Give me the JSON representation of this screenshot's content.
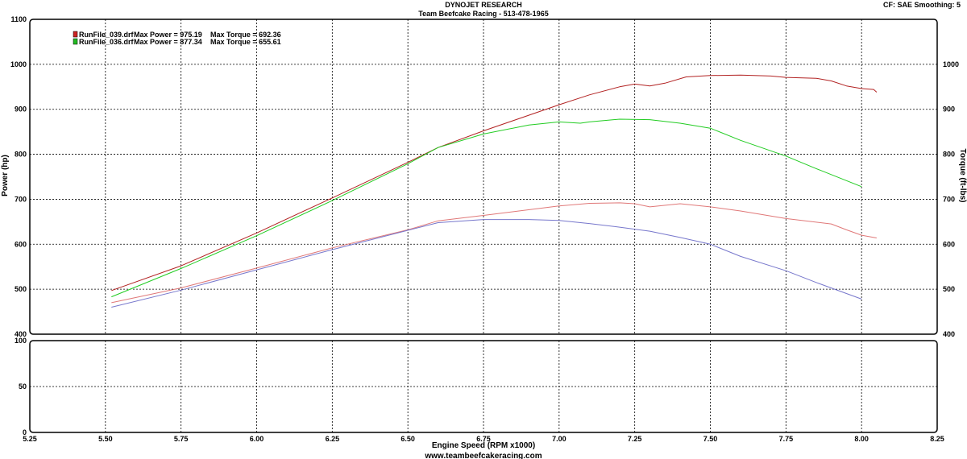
{
  "header": {
    "title": "DYNOJET RESEARCH",
    "subtitle": "Team Beefcake Racing - 513-478-1965",
    "settings": "CF: SAE  Smoothing: 5"
  },
  "footer": {
    "website": "www.teambeefcakeracing.com"
  },
  "chart_data": [
    {
      "type": "line",
      "panel": "main",
      "xlabel": "Engine Speed (RPM x1000)",
      "ylabel": "Power (hp)",
      "y2label": "Torque (ft-lbs)",
      "xlim": [
        5.25,
        8.25
      ],
      "ylim": [
        400,
        1100
      ],
      "y2lim": [
        400,
        1100
      ],
      "xticks": [
        "5.25",
        "5.50",
        "5.75",
        "6.00",
        "6.25",
        "6.50",
        "6.75",
        "7.00",
        "7.25",
        "7.50",
        "7.75",
        "8.00",
        "8.25"
      ],
      "yticks": [
        "400",
        "500",
        "600",
        "700",
        "800",
        "900",
        "1000",
        "1100"
      ],
      "y2ticks": [
        "400",
        "500",
        "600",
        "700",
        "800",
        "900",
        "1000"
      ],
      "grid": true,
      "legend_position": "top-left",
      "legend": [
        {
          "color_box": "#cc2222",
          "file": "RunFile_039.drf",
          "max_power_label": "Max Power = 975.19",
          "max_torque_label": "Max Torque = 692.36"
        },
        {
          "color_box": "#22bb22",
          "file": "RunFile_036.drf",
          "max_power_label": "Max Power = 877.34",
          "max_torque_label": "Max Torque = 655.61"
        }
      ],
      "series": [
        {
          "run": "RunFile_039.drf",
          "measure": "power",
          "axis": "left",
          "color": "#b22222",
          "points": [
            [
              5.52,
              497
            ],
            [
              5.75,
              552
            ],
            [
              6.0,
              625
            ],
            [
              6.25,
              703
            ],
            [
              6.5,
              782
            ],
            [
              6.6,
              815
            ],
            [
              6.75,
              852
            ],
            [
              7.0,
              910
            ],
            [
              7.1,
              932
            ],
            [
              7.2,
              950
            ],
            [
              7.25,
              956
            ],
            [
              7.3,
              952
            ],
            [
              7.35,
              958
            ],
            [
              7.42,
              972
            ],
            [
              7.5,
              975
            ],
            [
              7.6,
              976
            ],
            [
              7.7,
              974
            ],
            [
              7.75,
              971
            ],
            [
              7.85,
              969
            ],
            [
              7.9,
              963
            ],
            [
              7.95,
              952
            ],
            [
              8.0,
              946
            ],
            [
              8.04,
              944
            ],
            [
              8.05,
              938
            ]
          ]
        },
        {
          "run": "RunFile_036.drf",
          "measure": "power",
          "axis": "left",
          "color": "#22cc22",
          "points": [
            [
              5.52,
              483
            ],
            [
              5.75,
              546
            ],
            [
              6.0,
              619
            ],
            [
              6.25,
              697
            ],
            [
              6.5,
              779
            ],
            [
              6.6,
              815
            ],
            [
              6.75,
              845
            ],
            [
              6.9,
              865
            ],
            [
              7.0,
              872
            ],
            [
              7.07,
              869
            ],
            [
              7.1,
              872
            ],
            [
              7.2,
              878
            ],
            [
              7.3,
              877
            ],
            [
              7.4,
              869
            ],
            [
              7.5,
              858
            ],
            [
              7.6,
              831
            ],
            [
              7.75,
              796
            ],
            [
              7.85,
              768
            ],
            [
              8.0,
              728
            ]
          ]
        },
        {
          "run": "RunFile_039.drf",
          "measure": "torque",
          "axis": "right",
          "color": "#e07878",
          "points": [
            [
              5.52,
              470
            ],
            [
              5.75,
              503
            ],
            [
              6.0,
              547
            ],
            [
              6.25,
              592
            ],
            [
              6.5,
              632
            ],
            [
              6.6,
              652
            ],
            [
              6.75,
              664
            ],
            [
              7.0,
              685
            ],
            [
              7.1,
              691
            ],
            [
              7.2,
              692
            ],
            [
              7.25,
              690
            ],
            [
              7.3,
              683
            ],
            [
              7.4,
              690
            ],
            [
              7.5,
              683
            ],
            [
              7.6,
              674
            ],
            [
              7.75,
              657
            ],
            [
              7.9,
              645
            ],
            [
              7.95,
              632
            ],
            [
              8.0,
              620
            ],
            [
              8.05,
              614
            ]
          ]
        },
        {
          "run": "RunFile_036.drf",
          "measure": "torque",
          "axis": "right",
          "color": "#7777cc",
          "points": [
            [
              5.52,
              460
            ],
            [
              5.75,
              498
            ],
            [
              6.0,
              543
            ],
            [
              6.25,
              588
            ],
            [
              6.5,
              631
            ],
            [
              6.6,
              648
            ],
            [
              6.75,
              655
            ],
            [
              6.9,
              655
            ],
            [
              7.0,
              653
            ],
            [
              7.1,
              646
            ],
            [
              7.2,
              638
            ],
            [
              7.3,
              629
            ],
            [
              7.4,
              615
            ],
            [
              7.5,
              600
            ],
            [
              7.6,
              573
            ],
            [
              7.75,
              541
            ],
            [
              7.85,
              515
            ],
            [
              8.0,
              478
            ]
          ]
        }
      ]
    },
    {
      "type": "line",
      "panel": "lower",
      "xlim": [
        5.25,
        8.25
      ],
      "ylim": [
        0,
        100
      ],
      "yticks": [
        "0",
        "50",
        "100"
      ],
      "xticks": [
        "5.25",
        "5.50",
        "5.75",
        "6.00",
        "6.25",
        "6.50",
        "6.75",
        "7.00",
        "7.25",
        "7.50",
        "7.75",
        "8.00",
        "8.25"
      ],
      "grid": true,
      "series": []
    }
  ]
}
